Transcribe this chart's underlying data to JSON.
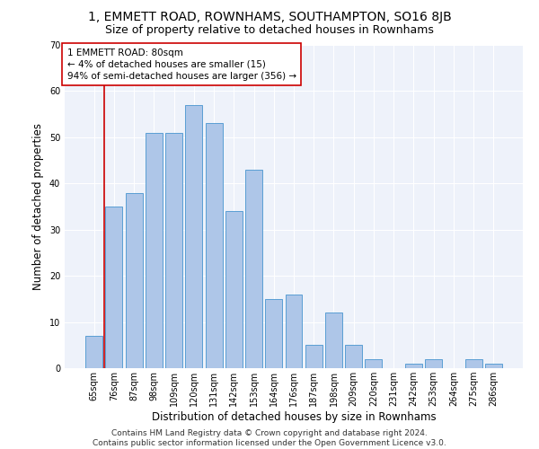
{
  "title": "1, EMMETT ROAD, ROWNHAMS, SOUTHAMPTON, SO16 8JB",
  "subtitle": "Size of property relative to detached houses in Rownhams",
  "xlabel": "Distribution of detached houses by size in Rownhams",
  "ylabel": "Number of detached properties",
  "categories": [
    "65sqm",
    "76sqm",
    "87sqm",
    "98sqm",
    "109sqm",
    "120sqm",
    "131sqm",
    "142sqm",
    "153sqm",
    "164sqm",
    "176sqm",
    "187sqm",
    "198sqm",
    "209sqm",
    "220sqm",
    "231sqm",
    "242sqm",
    "253sqm",
    "264sqm",
    "275sqm",
    "286sqm"
  ],
  "values": [
    7,
    35,
    38,
    51,
    51,
    57,
    53,
    34,
    43,
    15,
    16,
    5,
    12,
    5,
    2,
    0,
    1,
    2,
    0,
    2,
    1
  ],
  "bar_color": "#aec6e8",
  "bar_edge_color": "#5a9fd4",
  "background_color": "#eef2fa",
  "grid_color": "#ffffff",
  "annotation_box_text": "1 EMMETT ROAD: 80sqm\n← 4% of detached houses are smaller (15)\n94% of semi-detached houses are larger (356) →",
  "vline_x": 0.5,
  "vline_color": "#cc0000",
  "ylim": [
    0,
    70
  ],
  "yticks": [
    0,
    10,
    20,
    30,
    40,
    50,
    60,
    70
  ],
  "footer": "Contains HM Land Registry data © Crown copyright and database right 2024.\nContains public sector information licensed under the Open Government Licence v3.0.",
  "title_fontsize": 10,
  "subtitle_fontsize": 9,
  "xlabel_fontsize": 8.5,
  "ylabel_fontsize": 8.5,
  "annotation_fontsize": 7.5,
  "tick_fontsize": 7,
  "footer_fontsize": 6.5
}
